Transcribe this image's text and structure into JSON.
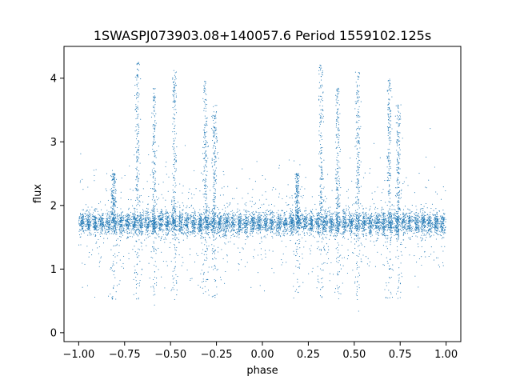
{
  "chart_data": {
    "type": "scatter",
    "title": "1SWASPJ073903.08+140057.6 Period 1559102.125s",
    "xlabel": "phase",
    "ylabel": "flux",
    "xlim": [
      -1.08,
      1.08
    ],
    "ylim": [
      -0.14,
      4.5
    ],
    "xticks": [
      -1.0,
      -0.75,
      -0.5,
      -0.25,
      0.0,
      0.25,
      0.5,
      0.75,
      1.0
    ],
    "xtick_labels": [
      "−1.00",
      "−0.75",
      "−0.50",
      "−0.25",
      "0.00",
      "0.25",
      "0.50",
      "0.75",
      "1.00"
    ],
    "yticks": [
      0,
      1,
      2,
      3,
      4
    ],
    "ytick_labels": [
      "0",
      "1",
      "2",
      "3",
      "4"
    ],
    "grid": false,
    "point_color": "#1f77b4",
    "series": [
      {
        "baseline_flux": 1.72,
        "baseline_spread": 0.09,
        "x_range": [
          -1.0,
          1.0
        ],
        "clusters": [
          {
            "phase": -0.81,
            "flux": 2.3
          },
          {
            "phase": -0.68,
            "flux": 3.6
          },
          {
            "phase": -0.59,
            "flux": 3.3
          },
          {
            "phase": -0.48,
            "flux": 3.5
          },
          {
            "phase": -0.31,
            "flux": 3.4
          },
          {
            "phase": -0.26,
            "flux": 3.1
          },
          {
            "phase": 0.19,
            "flux": 2.3
          },
          {
            "phase": 0.32,
            "flux": 3.6
          },
          {
            "phase": 0.41,
            "flux": 3.3
          },
          {
            "phase": 0.52,
            "flux": 3.5
          },
          {
            "phase": 0.69,
            "flux": 3.4
          },
          {
            "phase": 0.74,
            "flux": 3.1
          }
        ],
        "min_flux": 0.05,
        "max_flux": 4.25
      }
    ]
  }
}
